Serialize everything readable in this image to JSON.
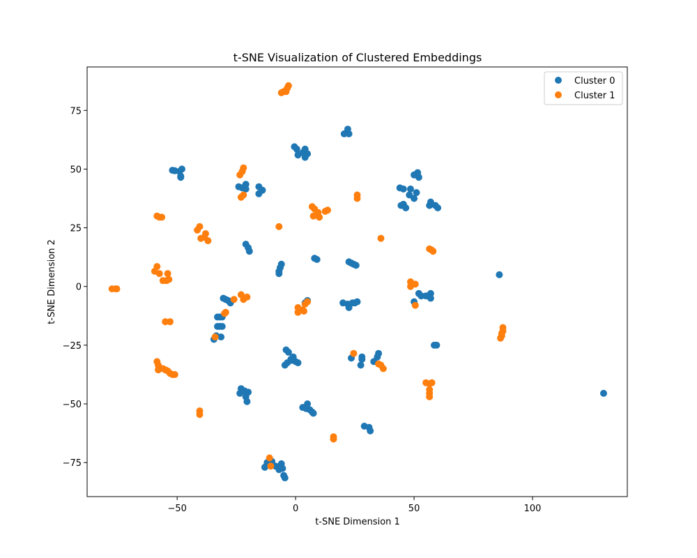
{
  "chart_data": {
    "type": "scatter",
    "title": "t-SNE Visualization of Clustered Embeddings",
    "xlabel": "t-SNE Dimension 1",
    "ylabel": "t-SNE Dimension 2",
    "xlim": [
      -88,
      140
    ],
    "ylim": [
      -89.5,
      93.5
    ],
    "xticks": [
      -50,
      0,
      50,
      100
    ],
    "yticks": [
      -75,
      -50,
      -25,
      0,
      25,
      50,
      75
    ],
    "grid": false,
    "legend_position": "top-right",
    "series": [
      {
        "name": "Cluster 0",
        "color": "#1f77b4",
        "points": [
          [
            -52,
            49.5
          ],
          [
            -51,
            49.3
          ],
          [
            -49,
            49
          ],
          [
            -48,
            50
          ],
          [
            -48.5,
            47
          ],
          [
            -48.5,
            46.5
          ],
          [
            -24,
            42.5
          ],
          [
            -22.5,
            42
          ],
          [
            -21,
            43.5
          ],
          [
            -21,
            41.5
          ],
          [
            -15.5,
            42.5
          ],
          [
            -14,
            41
          ],
          [
            -15.5,
            39.5
          ],
          [
            -21,
            18
          ],
          [
            -20,
            16.5
          ],
          [
            -19.5,
            15
          ],
          [
            -6,
            9.5
          ],
          [
            -6.5,
            8
          ],
          [
            -7,
            6.5
          ],
          [
            -7,
            5.5
          ],
          [
            -0.5,
            59.5
          ],
          [
            0.5,
            58.5
          ],
          [
            1,
            56
          ],
          [
            3,
            57
          ],
          [
            4,
            58.5
          ],
          [
            4,
            55
          ],
          [
            5,
            56.5
          ],
          [
            20.5,
            65
          ],
          [
            22,
            67
          ],
          [
            22.5,
            65
          ],
          [
            8,
            12
          ],
          [
            9,
            11.5
          ],
          [
            22.5,
            10.5
          ],
          [
            23.5,
            10
          ],
          [
            24.5,
            9.5
          ],
          [
            25.5,
            9
          ],
          [
            20,
            -7
          ],
          [
            22,
            -7.5
          ],
          [
            22.5,
            -9
          ],
          [
            24,
            -7
          ],
          [
            25,
            -7
          ],
          [
            26,
            -6.5
          ],
          [
            44,
            42
          ],
          [
            45.5,
            41.5
          ],
          [
            48.5,
            41.5
          ],
          [
            51,
            40
          ],
          [
            48,
            39
          ],
          [
            50,
            37.5
          ],
          [
            44.5,
            34.5
          ],
          [
            45.5,
            35
          ],
          [
            46.5,
            33.5
          ],
          [
            50,
            47.5
          ],
          [
            51.5,
            48.5
          ],
          [
            52,
            46.5
          ],
          [
            57,
            36
          ],
          [
            56.5,
            34.5
          ],
          [
            59,
            34.5
          ],
          [
            60,
            33.5
          ],
          [
            50,
            -6.5
          ],
          [
            52,
            -3
          ],
          [
            53,
            -4
          ],
          [
            55,
            -4
          ],
          [
            57,
            -3
          ],
          [
            57,
            -5
          ],
          [
            58.5,
            -25
          ],
          [
            59.5,
            -25
          ],
          [
            86,
            5
          ],
          [
            -30.5,
            -5
          ],
          [
            -29.5,
            -5.5
          ],
          [
            -28.5,
            -6
          ],
          [
            -27.5,
            -7
          ],
          [
            -33,
            -13
          ],
          [
            -32,
            -13
          ],
          [
            -31,
            -13
          ],
          [
            -33,
            -17
          ],
          [
            -32,
            -17
          ],
          [
            -31,
            -17
          ],
          [
            -34.5,
            -22.5
          ],
          [
            -33.5,
            -21
          ],
          [
            -31.5,
            -21.5
          ],
          [
            5,
            -6
          ],
          [
            4,
            -7
          ],
          [
            -4,
            -27
          ],
          [
            -3,
            -28
          ],
          [
            -2,
            -31
          ],
          [
            -1,
            -30
          ],
          [
            0,
            -32
          ],
          [
            1,
            -32.5
          ],
          [
            -4.5,
            -33.5
          ],
          [
            -3.5,
            -32.5
          ],
          [
            -2,
            -31.5
          ],
          [
            23.5,
            -30.5
          ],
          [
            27.5,
            -33.5
          ],
          [
            28,
            -31
          ],
          [
            28,
            -30
          ],
          [
            33,
            -32
          ],
          [
            34.5,
            -30
          ],
          [
            35,
            -28.5
          ],
          [
            -23.5,
            -45.5
          ],
          [
            -23,
            -43.5
          ],
          [
            -21.5,
            -44.5
          ],
          [
            -21,
            -47
          ],
          [
            -20.5,
            -49
          ],
          [
            -20,
            -45
          ],
          [
            3,
            -51.5
          ],
          [
            4.5,
            -52
          ],
          [
            5,
            -50
          ],
          [
            6,
            -52.5
          ],
          [
            7,
            -53.5
          ],
          [
            7.5,
            -54
          ],
          [
            29,
            -59.5
          ],
          [
            31,
            -60
          ],
          [
            31.5,
            -61.5
          ],
          [
            -13,
            -77
          ],
          [
            -12,
            -75
          ],
          [
            -10,
            -74.5
          ],
          [
            -8.5,
            -76.5
          ],
          [
            -7,
            -78
          ],
          [
            -6,
            -75.5
          ],
          [
            -5.5,
            -77.5
          ],
          [
            -5,
            -80.5
          ],
          [
            -4.5,
            -81.5
          ],
          [
            -6.5,
            -77
          ],
          [
            130,
            -45.5
          ]
        ]
      },
      {
        "name": "Cluster 1",
        "color": "#ff7f0e",
        "points": [
          [
            -6,
            82.5
          ],
          [
            -5,
            83
          ],
          [
            -4,
            83
          ],
          [
            -3.5,
            84.5
          ],
          [
            -3,
            85.5
          ],
          [
            -23.5,
            47.5
          ],
          [
            -22.5,
            49
          ],
          [
            -22,
            50.5
          ],
          [
            -23,
            38
          ],
          [
            -22,
            39
          ],
          [
            7,
            34
          ],
          [
            8,
            33
          ],
          [
            7.5,
            30
          ],
          [
            9.5,
            31.5
          ],
          [
            10,
            29.5
          ],
          [
            12.5,
            32
          ],
          [
            13.5,
            32.5
          ],
          [
            -7,
            25.5
          ],
          [
            26,
            39
          ],
          [
            26,
            37.5
          ],
          [
            -58.5,
            30
          ],
          [
            -57.5,
            29.5
          ],
          [
            -56.5,
            29.5
          ],
          [
            -41.5,
            24
          ],
          [
            -40.5,
            25.5
          ],
          [
            -40,
            20.5
          ],
          [
            -38.5,
            21
          ],
          [
            -38,
            22.5
          ],
          [
            -37,
            19.5
          ],
          [
            36,
            20.5
          ],
          [
            56.5,
            16
          ],
          [
            57.5,
            15.5
          ],
          [
            58,
            15
          ],
          [
            -59.5,
            6.5
          ],
          [
            -58.5,
            8.5
          ],
          [
            -57.5,
            5.5
          ],
          [
            -56,
            2.5
          ],
          [
            -54,
            5.5
          ],
          [
            -53.5,
            3
          ],
          [
            -54.5,
            2.5
          ],
          [
            -77.5,
            -1
          ],
          [
            -76,
            -1
          ],
          [
            -75.5,
            -1
          ],
          [
            48.5,
            2
          ],
          [
            48.5,
            0
          ],
          [
            50.5,
            1
          ],
          [
            50.5,
            -8
          ],
          [
            -23,
            -3.5
          ],
          [
            -22,
            -5.5
          ],
          [
            -20.5,
            -4.5
          ],
          [
            -26,
            -5.5
          ],
          [
            1,
            -9
          ],
          [
            1,
            -11
          ],
          [
            2,
            -10
          ],
          [
            3,
            -10
          ],
          [
            3.5,
            -10.5
          ],
          [
            4,
            -7.5
          ],
          [
            5,
            -6.5
          ],
          [
            -55,
            -15
          ],
          [
            -53,
            -15
          ],
          [
            -30,
            -11.5
          ],
          [
            -29.5,
            -11
          ],
          [
            -34,
            -21.5
          ],
          [
            86.5,
            -22
          ],
          [
            87,
            -21
          ],
          [
            87,
            -20
          ],
          [
            87.5,
            -19
          ],
          [
            87.5,
            -17.5
          ],
          [
            24.5,
            -28.5
          ],
          [
            35,
            -33
          ],
          [
            36,
            -33.5
          ],
          [
            37,
            -35
          ],
          [
            -58.5,
            -32
          ],
          [
            -58,
            -33.5
          ],
          [
            -57,
            -35
          ],
          [
            -58,
            -35.5
          ],
          [
            -56,
            -35
          ],
          [
            -55,
            -35.5
          ],
          [
            -54,
            -36
          ],
          [
            -53,
            -37
          ],
          [
            -52,
            -37.5
          ],
          [
            -51,
            -37.5
          ],
          [
            55,
            -41
          ],
          [
            56.5,
            -41.5
          ],
          [
            57.5,
            -41
          ],
          [
            56.5,
            -44
          ],
          [
            56.5,
            -45.5
          ],
          [
            56.5,
            -47
          ],
          [
            -40.5,
            -53
          ],
          [
            -40.5,
            -54.5
          ],
          [
            16,
            -64
          ],
          [
            16,
            -65
          ],
          [
            -11,
            -73
          ],
          [
            -10.5,
            -76.5
          ]
        ]
      }
    ]
  }
}
